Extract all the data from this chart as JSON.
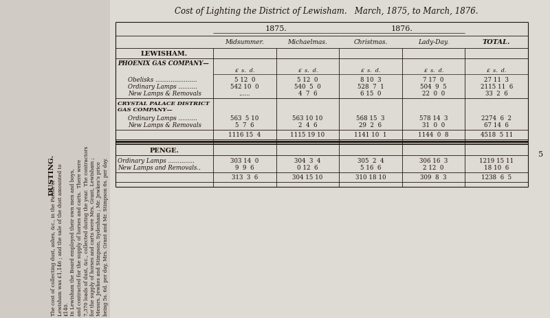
{
  "title": "Cost of Lighting the District of Lewisham.   March, 1875, to March, 1876.",
  "bg_color": "#c8c3bc",
  "page_color": "#dedad4",
  "text_color": "#1a1208",
  "sidebar_text": [
    "DUSTING.",
    "The cost of collecting dust, ashes, &c., in the Parish of",
    "Lewisham was £1,146 ; and the sale of the dust amounted to",
    "£140.",
    "In Lewisham the Board employed their own men and boys,",
    "and contracted for the supply of horses and carts.  There were",
    "7,370 loads of dust, &c., collected during the year.  The contractors",
    "for the supply of horses and carts were Mrs. Grant, Lewisham ;",
    "Messrs. Jewkes and Stimpson, Sydenham ; Mr. Jewkes’s price",
    "being 5s. 6d. per day, Mrs. Grant and Mr. Stimpson 6s. per day."
  ],
  "page_number": "5",
  "col_headers_sub": [
    "Midsummer.",
    "Michaelmas.",
    "Christmas.",
    "Lady-Day."
  ],
  "total_header": "TOTAL.",
  "lewisham_header": "LEWISHAM.",
  "phoenix_header": "PHOENIX GAS COMPANY—",
  "lsd": "£  s.  d.",
  "phoenix_rows": [
    [
      "Obelisks ......................",
      "5 12  0",
      "5 12  0",
      "8 10  3",
      "7 17  0",
      "27 11  3"
    ],
    [
      "Ordinary Lamps ..........",
      "542 10  0",
      "540  5  0",
      "528  7  1",
      "504  9  5",
      "2115 11  6"
    ],
    [
      "New Lamps & Removals",
      "......",
      "4  7  6",
      "6 15  0",
      "22  0  0",
      "33  2  6"
    ]
  ],
  "crystal_header1": "CRYSTAL PALACE DISTRICT",
  "crystal_header2": "GAS COMPANY—",
  "crystal_rows": [
    [
      "Ordinary Lamps ..........",
      "563  5 10",
      "563 10 10",
      "568 15  3",
      "578 14  3",
      "2274  6  2"
    ],
    [
      "New Lamps & Removals",
      "5  7  6",
      "2  4  6",
      "29  2  6",
      "31  0  0",
      "67 14  6"
    ]
  ],
  "lewisham_totals": [
    "1116 15  4",
    "1115 19 10",
    "1141 10  1",
    "1144  0  8",
    "4518  5 11"
  ],
  "penge_header": "PENGE.",
  "penge_rows": [
    [
      "Ordinary Lamps ..............",
      "303 14  0",
      "304  3  4",
      "305  2  4",
      "306 16  3",
      "1219 15 11"
    ],
    [
      "New Lamps and Removals..",
      "9  9  6",
      "0 12  6",
      "5 16  6",
      "2 12  0",
      "18 10  6"
    ]
  ],
  "penge_totals": [
    "313  3  6",
    "304 15 10",
    "310 18 10",
    "309  8  3",
    "1238  6  5"
  ]
}
